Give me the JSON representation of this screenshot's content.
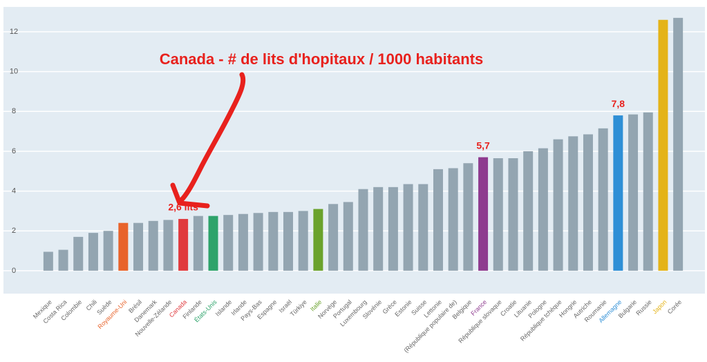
{
  "chart_data": {
    "type": "bar",
    "title": "Canada - # de lits d'hopitaux / 1000 habitants",
    "categories": [
      "Mexique",
      "Costa Rica",
      "Colombie",
      "Chili",
      "Suède",
      "Royaume-Uni",
      "Brésil",
      "Danemark",
      "Nouvelle-Zélande",
      "Canada",
      "Finlande",
      "États-Unis",
      "Islande",
      "Irlande",
      "Pays-Bas",
      "Espagne",
      "Israël",
      "Türkiye",
      "Italie",
      "Norvège",
      "Portugal",
      "Luxembourg",
      "Slovénie",
      "Grèce",
      "Estonie",
      "Suisse",
      "Lettonie",
      "(République populaire de)",
      "Belgique",
      "France",
      "République slovaque",
      "Croatie",
      "Lituanie",
      "Pologne",
      "République tchèque",
      "Hongrie",
      "Autriche",
      "Roumanie",
      "Allemagne",
      "Bulgarie",
      "Russie",
      "Japon",
      "Corée"
    ],
    "values": [
      0.95,
      1.05,
      1.7,
      1.9,
      2.0,
      2.4,
      2.4,
      2.5,
      2.55,
      2.6,
      2.75,
      2.75,
      2.8,
      2.85,
      2.9,
      2.95,
      2.95,
      3.0,
      3.1,
      3.35,
      3.45,
      4.1,
      4.2,
      4.2,
      4.35,
      4.35,
      5.1,
      5.15,
      5.4,
      5.7,
      5.65,
      5.65,
      6.0,
      6.15,
      6.6,
      6.75,
      6.85,
      7.15,
      7.8,
      7.85,
      7.95,
      12.6,
      12.7
    ],
    "value_labels": [
      null,
      null,
      null,
      null,
      null,
      null,
      null,
      null,
      null,
      "2,6 lits",
      null,
      null,
      null,
      null,
      null,
      null,
      null,
      null,
      null,
      null,
      null,
      null,
      null,
      null,
      null,
      null,
      null,
      null,
      null,
      "5,7",
      null,
      null,
      null,
      null,
      null,
      null,
      null,
      null,
      "7,8",
      null,
      null,
      null,
      null
    ],
    "colors": [
      "#93a5b1",
      "#93a5b1",
      "#93a5b1",
      "#93a5b1",
      "#93a5b1",
      "#e8632b",
      "#93a5b1",
      "#93a5b1",
      "#93a5b1",
      "#e03a3e",
      "#93a5b1",
      "#2ea36b",
      "#93a5b1",
      "#93a5b1",
      "#93a5b1",
      "#93a5b1",
      "#93a5b1",
      "#93a5b1",
      "#6aa22c",
      "#93a5b1",
      "#93a5b1",
      "#93a5b1",
      "#93a5b1",
      "#93a5b1",
      "#93a5b1",
      "#93a5b1",
      "#93a5b1",
      "#93a5b1",
      "#93a5b1",
      "#8e3b8f",
      "#93a5b1",
      "#93a5b1",
      "#93a5b1",
      "#93a5b1",
      "#93a5b1",
      "#93a5b1",
      "#93a5b1",
      "#93a5b1",
      "#2e8fd6",
      "#93a5b1",
      "#93a5b1",
      "#e4b318",
      "#93a5b1"
    ],
    "ylim": [
      -1.15,
      13.25
    ],
    "yticks": [
      0,
      2,
      4,
      6,
      8,
      10,
      12
    ],
    "grid": true
  }
}
